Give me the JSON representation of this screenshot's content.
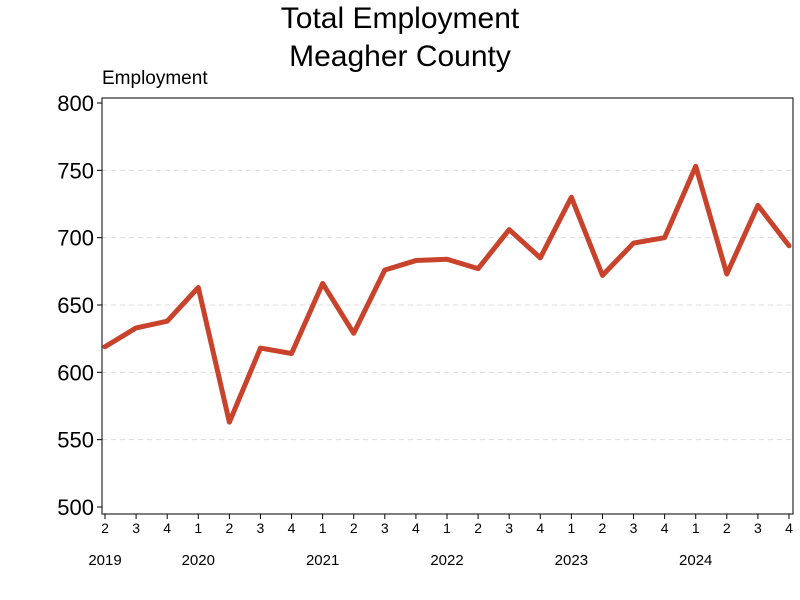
{
  "chart_data": {
    "type": "line",
    "title_lines": [
      "Total Employment",
      "Meagher County"
    ],
    "ylabel": "Employment",
    "xlabel": "",
    "ylim": [
      500,
      800
    ],
    "yticks": [
      500,
      550,
      600,
      650,
      700,
      750,
      800
    ],
    "grid": "horizontal-dashed",
    "line_color": "#c9432c",
    "quarters": [
      "2",
      "3",
      "4",
      "1",
      "2",
      "3",
      "4",
      "1",
      "2",
      "3",
      "4",
      "1",
      "2",
      "3",
      "4",
      "1",
      "2",
      "3",
      "4",
      "1",
      "2",
      "3",
      "4"
    ],
    "years": [
      {
        "label": "2019",
        "index": 0
      },
      {
        "label": "2020",
        "index": 3
      },
      {
        "label": "2021",
        "index": 7
      },
      {
        "label": "2022",
        "index": 11
      },
      {
        "label": "2023",
        "index": 15
      },
      {
        "label": "2024",
        "index": 19
      }
    ],
    "series": [
      {
        "values": [
          619,
          633,
          638,
          663,
          563,
          618,
          614,
          666,
          629,
          676,
          683,
          684,
          677,
          706,
          685,
          730,
          672,
          696,
          700,
          753,
          673,
          724,
          694
        ]
      }
    ]
  }
}
